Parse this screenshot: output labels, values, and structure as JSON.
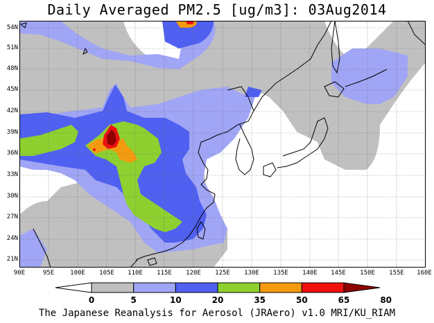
{
  "title": "Daily Averaged PM2.5 [ug/m3]: 03Aug2014",
  "credit": "The Japanese Reanalysis for Aerosol (JRAero) v1.0 MRI/KU_RIAM",
  "lat_labels": [
    "54N",
    "51N",
    "48N",
    "45N",
    "42N",
    "39N",
    "36N",
    "33N",
    "30N",
    "27N",
    "24N",
    "21N"
  ],
  "lon_labels": [
    "90E",
    "95E",
    "100E",
    "105E",
    "110E",
    "115E",
    "120E",
    "125E",
    "130E",
    "135E",
    "140E",
    "145E",
    "150E",
    "155E",
    "160E"
  ],
  "colorbar": {
    "ticks": [
      "0",
      "5",
      "10",
      "20",
      "35",
      "50",
      "65",
      "80"
    ],
    "colors": [
      "#ffffff",
      "#c0c0c0",
      "#a0a5f5",
      "#5060f0",
      "#8ed030",
      "#f49a10",
      "#f01010",
      "#900000"
    ]
  }
}
